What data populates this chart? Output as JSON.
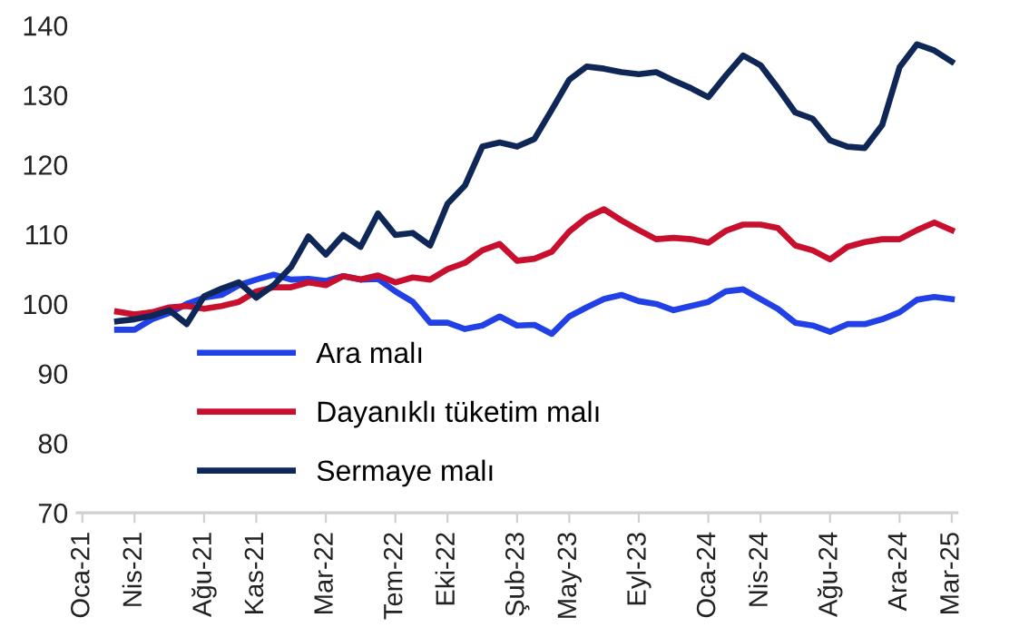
{
  "chart_data": {
    "type": "line",
    "categories": [
      "Oca-21",
      null,
      null,
      "Nis-21",
      null,
      null,
      null,
      "Ağu-21",
      null,
      null,
      "Kas-21",
      null,
      null,
      null,
      "Mar-22",
      null,
      null,
      null,
      "Tem-22",
      null,
      null,
      "Eki-22",
      null,
      null,
      null,
      "Şub-23",
      null,
      null,
      "May-23",
      null,
      null,
      null,
      "Eyl-23",
      null,
      null,
      null,
      "Oca-24",
      null,
      null,
      "Nis-24",
      null,
      null,
      null,
      "Ağu-24",
      null,
      null,
      null,
      "Ara-24",
      null,
      null,
      "Mar-25"
    ],
    "series": [
      {
        "name": "Ara malı",
        "color": "#2140e6",
        "values": [
          null,
          null,
          96.3,
          96.3,
          97.8,
          98.7,
          100.0,
          100.9,
          101.3,
          102.7,
          103.5,
          104.2,
          103.5,
          103.6,
          103.3,
          104.0,
          103.5,
          103.6,
          101.8,
          100.3,
          97.3,
          97.3,
          96.4,
          96.9,
          98.2,
          96.9,
          97.0,
          95.7,
          98.2,
          99.5,
          100.7,
          101.3,
          100.4,
          100.0,
          99.1,
          99.7,
          100.3,
          101.8,
          102.1,
          100.7,
          99.3,
          97.3,
          96.9,
          96.0,
          97.1,
          97.1,
          97.8,
          98.8,
          100.6,
          101.0,
          100.7
        ]
      },
      {
        "name": "Dayanıklı tüketim malı",
        "color": "#c8102e",
        "values": [
          null,
          null,
          98.9,
          98.5,
          98.8,
          99.5,
          99.7,
          99.3,
          99.7,
          100.3,
          101.8,
          102.4,
          102.4,
          103.1,
          102.7,
          104.0,
          103.5,
          104.1,
          103.1,
          103.8,
          103.5,
          105.0,
          105.9,
          107.7,
          108.6,
          106.2,
          106.5,
          107.5,
          110.4,
          112.4,
          113.6,
          112.0,
          110.6,
          109.3,
          109.5,
          109.3,
          108.8,
          110.5,
          111.4,
          111.4,
          110.9,
          108.4,
          107.7,
          106.4,
          108.2,
          108.9,
          109.3,
          109.3,
          110.6,
          111.7,
          110.6
        ]
      },
      {
        "name": "Sermaye malı",
        "color": "#0f2757",
        "values": [
          null,
          null,
          97.5,
          97.8,
          98.3,
          99.1,
          97.1,
          101.1,
          102.2,
          103.1,
          100.9,
          102.7,
          105.3,
          109.7,
          107.1,
          109.9,
          108.2,
          113.0,
          109.9,
          110.2,
          108.4,
          114.4,
          117.0,
          122.6,
          123.2,
          122.6,
          123.7,
          127.9,
          132.2,
          134.1,
          133.8,
          133.3,
          133.0,
          133.3,
          132.1,
          131.0,
          129.7,
          132.8,
          135.7,
          134.3,
          131.0,
          127.5,
          126.6,
          123.5,
          122.6,
          122.4,
          125.7,
          134.0,
          137.3,
          136.4,
          134.8
        ]
      }
    ],
    "ylim": [
      70,
      140
    ],
    "yticks": [
      70,
      80,
      90,
      100,
      110,
      120,
      130,
      140
    ],
    "grid": false,
    "legend": "bottom left",
    "marker": "none",
    "line_style": "solid"
  }
}
